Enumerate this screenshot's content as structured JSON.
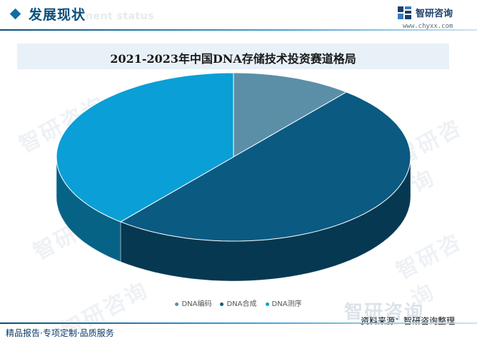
{
  "header": {
    "section_title": "发展现状",
    "section_subtitle": "nent status",
    "brand_name": "智研咨询",
    "brand_url": "www.chyxx.com"
  },
  "chart_data": {
    "type": "pie",
    "title": "2021-2023年中国DNA存储技术投资赛道格局",
    "categories": [
      "DNA编码",
      "DNA合成",
      "DNA测序"
    ],
    "values": [
      11,
      50,
      39
    ],
    "colors": [
      "#5b8fa8",
      "#0a5a82",
      "#0a9fd6"
    ],
    "legend_position": "bottom"
  },
  "watermark": {
    "text": "智研咨询"
  },
  "footer": {
    "source": "资料来源：智研咨询整理",
    "tagline": "精品报告·专项定制·品质服务"
  }
}
